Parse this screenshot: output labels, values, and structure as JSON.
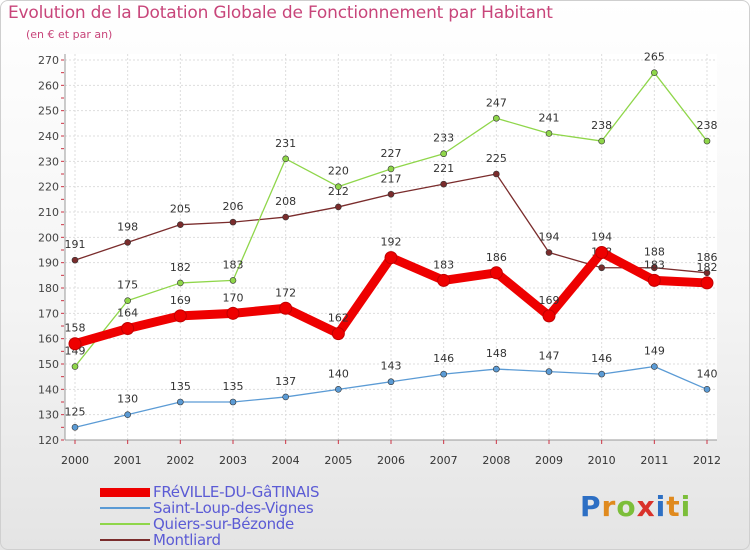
{
  "title": "Evolution de la Dotation Globale de Fonctionnement par Habitant",
  "subtitle": "(en € et par an)",
  "logo": {
    "text": "Proxiti",
    "colors": [
      "#2d6fc4",
      "#e08a1e",
      "#7cbe3a",
      "#d9322b",
      "#2d6fc4",
      "#e08a1e",
      "#7cbe3a"
    ]
  },
  "chart_data": {
    "type": "line",
    "title": "Evolution de la Dotation Globale de Fonctionnement par Habitant",
    "subtitle": "(en € et par an)",
    "xlabel": "",
    "ylabel": "",
    "ylim": [
      120,
      270
    ],
    "yticks": [
      120,
      130,
      140,
      150,
      160,
      170,
      180,
      190,
      200,
      210,
      220,
      230,
      240,
      250,
      260,
      270
    ],
    "grid": true,
    "legend_position": "bottom-left",
    "categories": [
      "2000",
      "2001",
      "2002",
      "2003",
      "2004",
      "2005",
      "2006",
      "2007",
      "2008",
      "2009",
      "2010",
      "2011",
      "2012"
    ],
    "series": [
      {
        "name": "Montliard",
        "color": "#7a2c2c",
        "values": [
          191,
          198,
          205,
          206,
          208,
          212,
          217,
          221,
          225,
          194,
          188,
          188,
          186
        ],
        "labels": [
          "191",
          "198",
          "205",
          "206",
          "208",
          "212",
          "217",
          "221",
          "225",
          "194",
          "188",
          "188",
          "186"
        ]
      },
      {
        "name": "Quiers-sur-Bézonde",
        "color": "#8fd64a",
        "values": [
          149,
          175,
          182,
          183,
          231,
          220,
          227,
          233,
          247,
          241,
          238,
          265,
          238
        ],
        "labels": [
          "149",
          "175",
          "182",
          "183",
          "231",
          "220",
          "227",
          "233",
          "247",
          "241",
          "238",
          "265",
          "238"
        ]
      },
      {
        "name": "Saint-Loup-des-Vignes",
        "color": "#5b9bd5",
        "values": [
          125,
          130,
          135,
          135,
          137,
          140,
          143,
          146,
          148,
          147,
          146,
          149,
          140
        ],
        "labels": [
          "125",
          "130",
          "135",
          "135",
          "137",
          "140",
          "143",
          "146",
          "148",
          "147",
          "146",
          "149",
          "140"
        ]
      },
      {
        "name": "FRéVILLE-DU-GâTINAIS",
        "color": "#ee0000",
        "values": [
          158,
          164,
          169,
          170,
          172,
          162,
          192,
          183,
          186,
          169,
          194,
          183,
          182
        ],
        "labels": [
          "158",
          "164",
          "169",
          "170",
          "172",
          "162",
          "192",
          "183",
          "186",
          "169",
          "194",
          "183",
          "182"
        ]
      }
    ]
  },
  "legend": [
    {
      "label": "FRéVILLE-DU-GâTINAIS",
      "color": "#ee0000",
      "line_style": "thick"
    },
    {
      "label": "Saint-Loup-des-Vignes",
      "color": "#5b9bd5",
      "line_style": "thin"
    },
    {
      "label": "Quiers-sur-Bézonde",
      "color": "#8fd64a",
      "line_style": "thin"
    },
    {
      "label": "Montliard",
      "color": "#7a2c2c",
      "line_style": "thin"
    }
  ]
}
